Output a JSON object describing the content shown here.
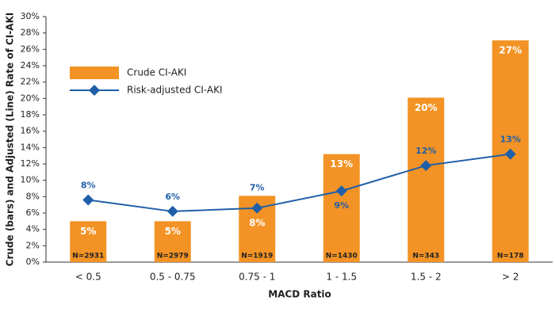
{
  "chart_data": {
    "type": "bar",
    "x_label": "MACD Ratio",
    "y_label": "Crude (bars) and Adjusted (Line) Rate of CI-AKI",
    "categories": [
      "< 0.5",
      "0.5 - 0.75",
      "0.75 - 1",
      "1 - 1.5",
      "1.5 - 2",
      "> 2"
    ],
    "series": [
      {
        "name": "Crude CI-AKI",
        "type": "bar",
        "color": "#f39325",
        "values": [
          5.0,
          5.0,
          8.1,
          13.2,
          20.1,
          27.1
        ],
        "value_labels": [
          "5%",
          "5%",
          "8%",
          "13%",
          "20%",
          "27%"
        ]
      },
      {
        "name": "Risk-adjusted CI-AKI",
        "type": "line",
        "color": "#1f5fa8",
        "values": [
          7.6,
          6.2,
          6.6,
          8.7,
          11.8,
          13.2
        ],
        "value_labels": [
          "8%",
          "6%",
          "7%",
          "9%",
          "12%",
          "13%"
        ]
      }
    ],
    "n_labels": [
      "N=2931",
      "N=2979",
      "N=1919",
      "N=1430",
      "N=343",
      "N=178"
    ],
    "ylim": [
      0,
      30
    ],
    "yticks": [
      {
        "value": 0,
        "label": "0%"
      },
      {
        "value": 2,
        "label": "2%"
      },
      {
        "value": 4,
        "label": "4%"
      },
      {
        "value": 6,
        "label": "6%"
      },
      {
        "value": 8,
        "label": "8%"
      },
      {
        "value": 10,
        "label": "10%"
      },
      {
        "value": 12,
        "label": "12%"
      },
      {
        "value": 14,
        "label": "14%"
      },
      {
        "value": 16,
        "label": "16%"
      },
      {
        "value": 18,
        "label": "18%"
      },
      {
        "value": 20,
        "label": "20%"
      },
      {
        "value": 22,
        "label": "22%"
      },
      {
        "value": 24,
        "label": "24%"
      },
      {
        "value": 26,
        "label": "26%"
      },
      {
        "value": 28,
        "label": "28%"
      },
      {
        "value": 30,
        "label": "30%"
      }
    ],
    "grid": false,
    "legend": "upper left"
  }
}
